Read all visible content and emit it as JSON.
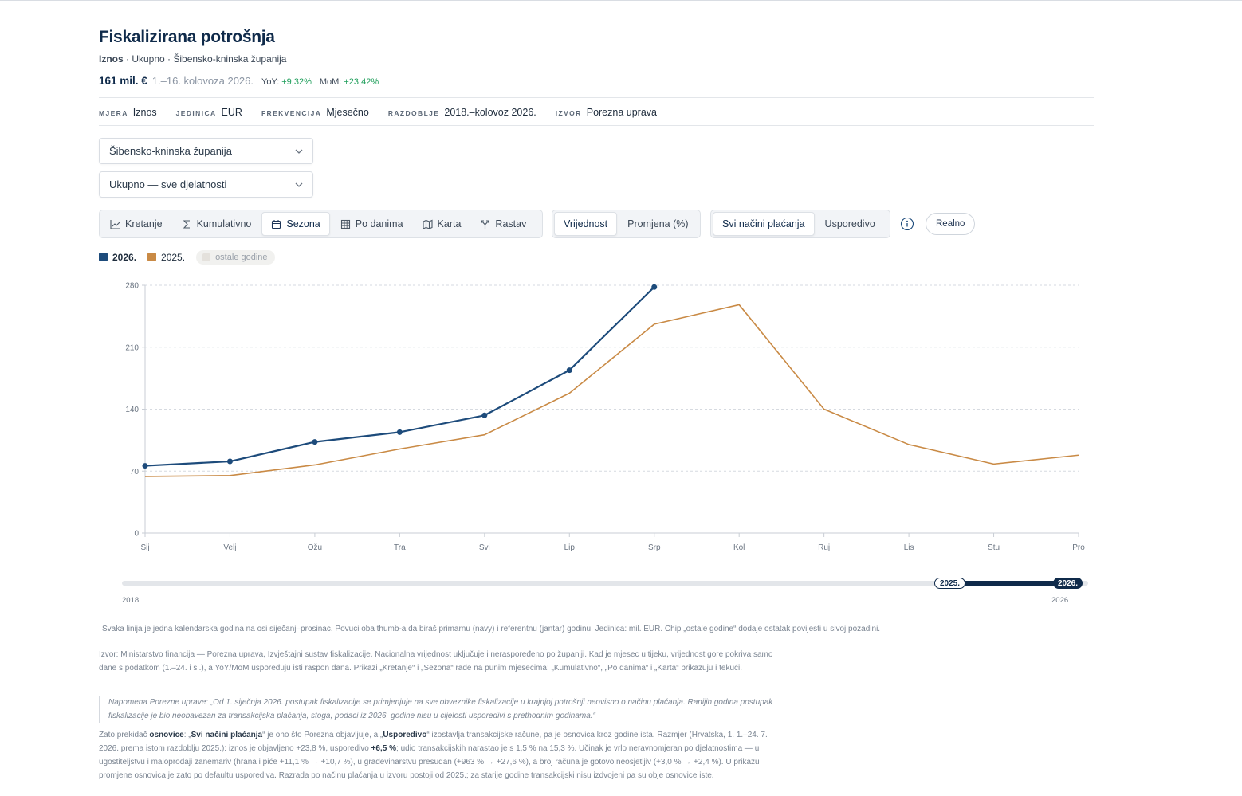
{
  "header": {
    "title": "Fiskalizirana potrošnja",
    "subtitle": [
      {
        "text": "Iznos",
        "strong": true
      },
      {
        "text": " · Ukupno · Šibensko-kninska županija"
      }
    ],
    "headline": {
      "value": "161 mil. €",
      "period": "1.–16. kolovoza 2026.",
      "yoy_label": "YoY:",
      "yoy": "+9,32%",
      "mom_label": "MoM:",
      "mom": "+23,42%"
    }
  },
  "meta": [
    {
      "label": "MJERA",
      "value": "Iznos"
    },
    {
      "label": "JEDINICA",
      "value": "EUR"
    },
    {
      "label": "FREKVENCIJA",
      "value": "Mjesečno"
    },
    {
      "label": "RAZDOBLJE",
      "value": "2018.–kolovoz 2026."
    },
    {
      "label": "IZVOR",
      "value": "Porezna uprava"
    }
  ],
  "selects": [
    "Šibensko-kninska županija",
    "Ukupno — sve djelatnosti"
  ],
  "view_tabs": [
    "Kretanje",
    "Kumulativno",
    "Sezona",
    "Po danima",
    "Karta",
    "Rastav"
  ],
  "value_tabs": [
    "Vrijednost",
    "Promjena (%)"
  ],
  "basis_tabs": [
    "Svi načini plaćanja",
    "Usporedivo"
  ],
  "real_button": "Realno",
  "other_years_chip": "ostale godine",
  "chart_data": {
    "type": "line",
    "categories": [
      "Sij",
      "Velj",
      "Ožu",
      "Tra",
      "Svi",
      "Lip",
      "Srp",
      "Kol",
      "Ruj",
      "Lis",
      "Stu",
      "Pro"
    ],
    "series": [
      {
        "name": "2026.",
        "color": "#1d4b7b",
        "markers": true,
        "values": [
          76,
          81,
          103,
          114,
          133,
          184,
          278,
          null,
          null,
          null,
          null,
          null
        ]
      },
      {
        "name": "2025.",
        "color": "#c98a45",
        "markers": false,
        "values": [
          64,
          65,
          77,
          95,
          111,
          158,
          236,
          258,
          140,
          100,
          78,
          88
        ]
      }
    ],
    "ylim": [
      0,
      280
    ],
    "yticks": [
      0,
      70,
      140,
      210,
      280
    ],
    "grid": true
  },
  "slider": {
    "start": "2018.",
    "end": "2026.",
    "thumbs": [
      "2025.",
      "2026."
    ]
  },
  "notes": {
    "caption": "Svaka linija je jedna kalendarska godina na osi siječanj–prosinac. Povuci oba thumb-a da biraš primarnu (navy) i referentnu (jantar) godinu. Jedinica: mil. EUR. Chip „ostale godine“ dodaje ostatak povijesti u sivoj pozadini.",
    "source": "Izvor: Ministarstvo financija — Porezna uprava, Izvještajni sustav fiskalizacije. Nacionalna vrijednost uključuje i neraspoređeno po županiji. Kad je mjesec u tijeku, vrijednost gore pokriva samo dane s podatkom (1.–24. i sl.), a YoY/MoM uspoređuju isti raspon dana. Prikazi „Kretanje“ i „Sezona“ rade na punim mjesecima; „Kumulativno“, „Po danima“ i „Karta“ prikazuju i tekući.",
    "quote": "Napomena Porezne uprave: „Od 1. siječnja 2026. postupak fiskalizacije se primjenjuje na sve obveznike fiskalizacije u krajnjoj potrošnji neovisno o načinu plaćanja. Ranijih godina postupak fiskalizacije je bio neobavezan za transakcijska plaćanja, stoga, podaci iz 2026. godine nisu u cijelosti usporedivi s prethodnim godinama.“",
    "basis": [
      {
        "text": "Zato prekidač "
      },
      {
        "text": "osnovice",
        "strong": true
      },
      {
        "text": ": „"
      },
      {
        "text": "Svi načini plaćanja",
        "strong": true
      },
      {
        "text": "“ je ono što Porezna objavljuje, a „"
      },
      {
        "text": "Usporedivo",
        "strong": true
      },
      {
        "text": "“ izostavlja transakcijske račune, pa je osnovica kroz godine ista. Razmjer (Hrvatska, 1. 1.–24. 7. 2026. prema istom razdoblju 2025.): iznos je objavljeno +23,8 %, usporedivo "
      },
      {
        "text": "+6,5 %",
        "strong": true
      },
      {
        "text": "; udio transakcijskih narastao je s 1,5 % na 15,3 %. Učinak je vrlo neravnomjeran po djelatnostima — u ugostiteljstvu i maloprodaji zanemariv (hrana i piće +11,1 % → +10,7 %), u građevinarstvu presudan (+963 % → +27,6 %), a broj računa je gotovo neosjetljiv (+3,0 % → +2,4 %). U prikazu promjene osnovica je zato po defaultu usporediva. Razrada po načinu plaćanja u izvoru postoji od 2025.; za starije godine transakcijski nisu izdvojeni pa su obje osnovice iste."
      }
    ]
  }
}
